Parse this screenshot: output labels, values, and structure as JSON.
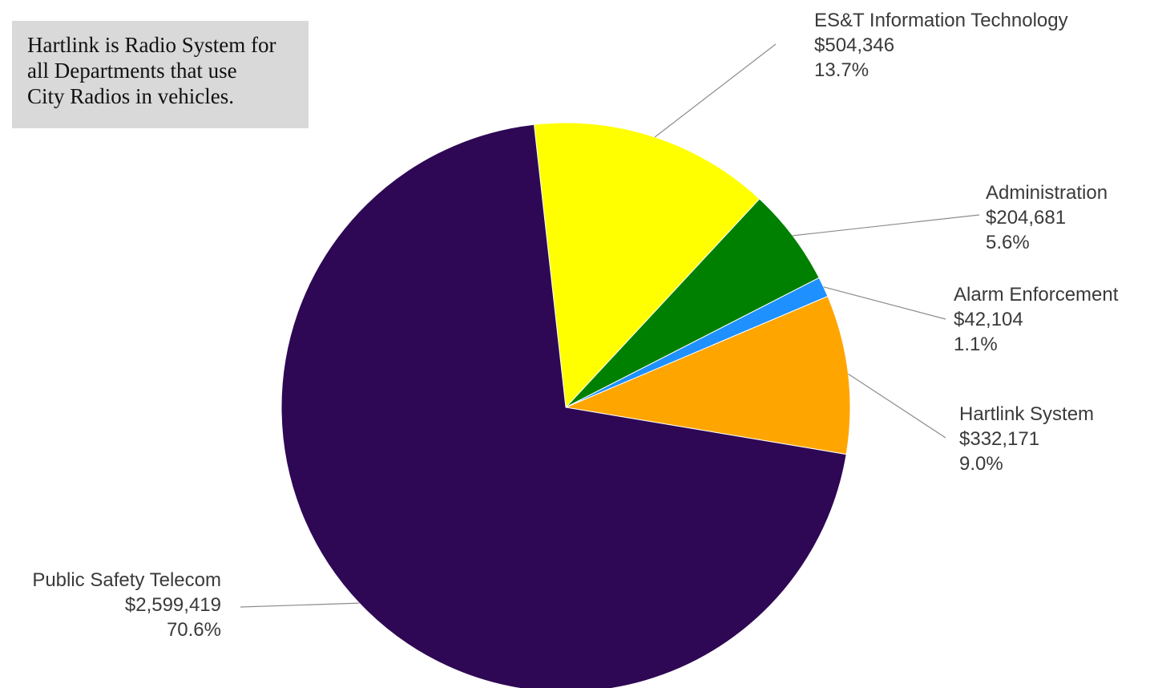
{
  "note": {
    "lines": [
      "Hartlink is Radio System for",
      "all Departments that use",
      "City Radios in vehicles."
    ]
  },
  "chart_data": {
    "type": "pie",
    "title": "",
    "slices": [
      {
        "name": "Hartlink System",
        "value": 332171,
        "amount_label": "$332,171",
        "percent_label": "9.0%",
        "percent": 9.0,
        "color": "#ffa500"
      },
      {
        "name": "Alarm Enforcement",
        "value": 42104,
        "amount_label": "$42,104",
        "percent_label": "1.1%",
        "percent": 1.1,
        "color": "#1e90ff"
      },
      {
        "name": "Administration",
        "value": 204681,
        "amount_label": "$204,681",
        "percent_label": "5.6%",
        "percent": 5.6,
        "color": "#008000"
      },
      {
        "name": "ES&T Information Technology",
        "value": 504346,
        "amount_label": "$504,346",
        "percent_label": "13.7%",
        "percent": 13.7,
        "color": "#ffff00"
      },
      {
        "name": "Public Safety Telecom",
        "value": 2599419,
        "amount_label": "$2,599,419",
        "percent_label": "70.6%",
        "percent": 70.6,
        "color": "#2e0854"
      }
    ]
  }
}
